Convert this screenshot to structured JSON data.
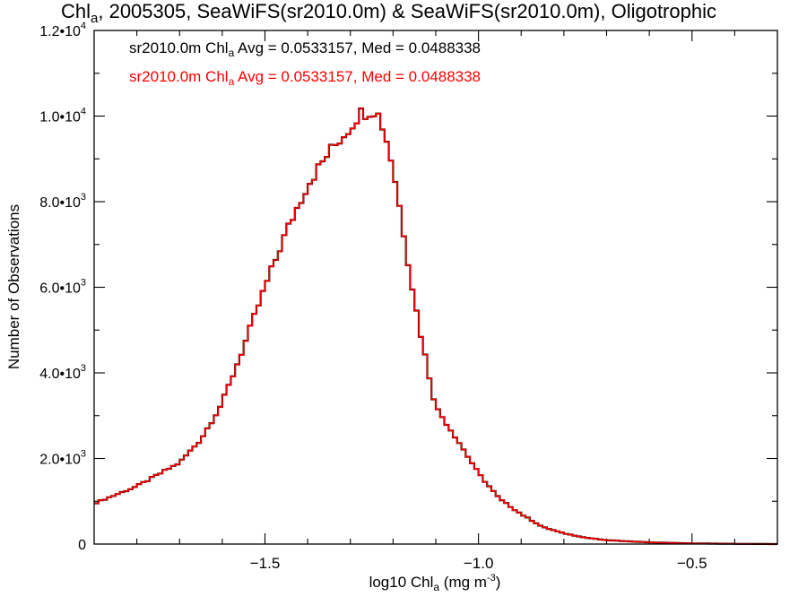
{
  "chart_data": {
    "type": "histogram",
    "title": {
      "prefix": "Chl",
      "sub": "a",
      "suffix": ", 2005305, SeaWiFS(sr2010.0m) & SeaWiFS(sr2010.0m), Oligotrophic"
    },
    "xlabel": {
      "prefix": "log10 Chl",
      "sub": "a",
      "middle": " (mg m",
      "sup": "-3",
      "suffix": ")"
    },
    "ylabel": "Number of Observations",
    "xlim": [
      -1.9,
      -0.3
    ],
    "ylim": [
      0,
      12000
    ],
    "x_ticks": [
      {
        "value": -1.5,
        "label": "−1.5"
      },
      {
        "value": -1.0,
        "label": "−1.0"
      },
      {
        "value": -0.5,
        "label": "−0.5"
      }
    ],
    "x_minor_step": 0.1,
    "y_ticks": [
      {
        "value": 0,
        "base": "0",
        "exp": ""
      },
      {
        "value": 2000,
        "base": "2.0•10",
        "exp": "3"
      },
      {
        "value": 4000,
        "base": "4.0•10",
        "exp": "3"
      },
      {
        "value": 6000,
        "base": "6.0•10",
        "exp": "3"
      },
      {
        "value": 8000,
        "base": "8.0•10",
        "exp": "3"
      },
      {
        "value": 10000,
        "base": "1.0•10",
        "exp": "4"
      },
      {
        "value": 12000,
        "base": "1.2•10",
        "exp": "4"
      }
    ],
    "y_minor_step": 1000,
    "legend": [
      {
        "prefix": "sr2010.0m Chl",
        "sub": "a",
        "suffix": " Avg = 0.0533157, Med = 0.0488338",
        "color": "#000000"
      },
      {
        "prefix": "sr2010.0m Chl",
        "sub": "a",
        "suffix": " Avg = 0.0533157, Med = 0.0488338",
        "color": "#ff0000"
      }
    ],
    "series": [
      {
        "bin_width": 0.01,
        "colors": [
          "#000000",
          "#ff0000"
        ],
        "x": [
          -1.9,
          -1.8,
          -1.7,
          -1.65,
          -1.6,
          -1.55,
          -1.5,
          -1.45,
          -1.4,
          -1.35,
          -1.3,
          -1.28,
          -1.26,
          -1.24,
          -1.22,
          -1.2,
          -1.18,
          -1.16,
          -1.14,
          -1.12,
          -1.1,
          -1.05,
          -1.0,
          -0.95,
          -0.9,
          -0.85,
          -0.8,
          -0.75,
          -0.7,
          -0.6,
          -0.5,
          -0.4,
          -0.3
        ],
        "y": [
          950,
          1350,
          1900,
          2450,
          3300,
          4600,
          6000,
          7300,
          8400,
          9150,
          9750,
          10050,
          10120,
          10150,
          9650,
          8800,
          7600,
          6300,
          5150,
          4150,
          3200,
          2450,
          1650,
          1050,
          700,
          400,
          250,
          150,
          90,
          40,
          15,
          5,
          0
        ]
      }
    ]
  }
}
